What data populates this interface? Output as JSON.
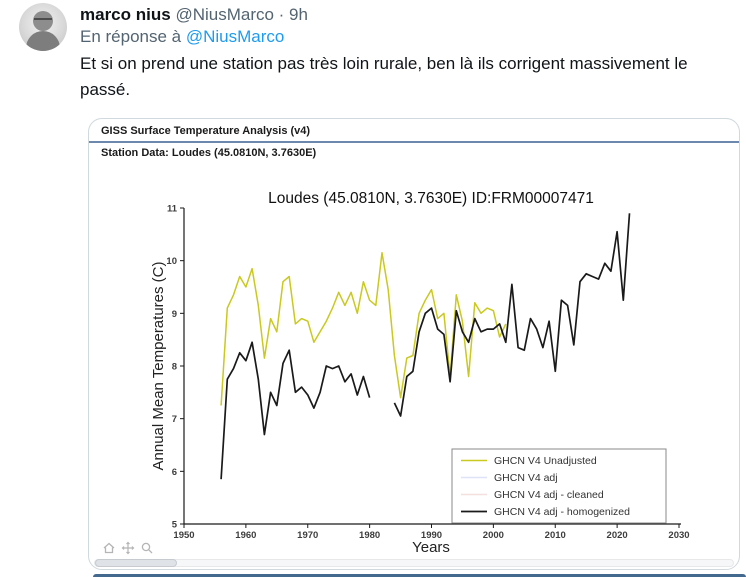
{
  "tweet": {
    "author_name": "marco nius",
    "author_meta": "@NiusMarco · 9h",
    "reply_prefix": "En réponse à ",
    "reply_handle": "@NiusMarco",
    "body": "Et si on prend une station pas très loin rurale, ben là ils corrigent massivement le passé."
  },
  "embed": {
    "header_title": "GISS Surface Temperature Analysis (v4)",
    "station_line": "Station Data: Loudes (45.0810N, 3.7630E)",
    "toolbar_icons": [
      "home-icon",
      "pan-icon",
      "zoom-icon"
    ]
  },
  "colors": {
    "link_blue": "#1d9bf0",
    "text_primary": "#0f1419",
    "text_secondary": "#536471",
    "card_border": "#cfd9de",
    "header_rule_blue": "#6c88ad",
    "bottom_strip_blue": "#44698f"
  },
  "chart_data": {
    "type": "line",
    "title": "Loudes (45.0810N, 3.7630E) ID:FRM00007471",
    "xlabel": "Years",
    "ylabel": "Annual Mean Temperatures (C)",
    "xlim": [
      1950,
      2030
    ],
    "ylim": [
      5,
      11
    ],
    "x_ticks": [
      1950,
      1960,
      1970,
      1980,
      1990,
      2000,
      2010,
      2020,
      2030
    ],
    "y_ticks": [
      5,
      6,
      7,
      8,
      9,
      10,
      11
    ],
    "grid": false,
    "legend_position": "bottom-right",
    "series": [
      {
        "name": "GHCN V4 Unadjusted",
        "color": "#c9c91f",
        "year_start": 1956,
        "values": [
          7.25,
          9.1,
          9.35,
          9.7,
          9.5,
          9.85,
          9.15,
          8.15,
          8.9,
          8.65,
          9.6,
          9.7,
          8.8,
          8.9,
          8.85,
          8.45,
          8.65,
          8.85,
          9.1,
          9.4,
          9.15,
          9.4,
          9.0,
          9.6,
          9.25,
          9.15,
          10.15,
          9.45,
          8.2,
          7.4,
          8.15,
          8.2,
          9.0,
          9.25,
          9.45,
          8.9,
          9.0,
          7.8,
          9.35,
          8.85,
          7.8,
          9.2,
          9.0,
          9.1,
          9.05,
          8.55,
          8.8
        ]
      },
      {
        "name": "GHCN V4 adj",
        "color": "#dfe3f7",
        "year_start": null,
        "values": [],
        "note": "plot line not visibly distinguishable (hidden behind other series)"
      },
      {
        "name": "GHCN V4 adj - cleaned",
        "color": "#f6dfdf",
        "year_start": null,
        "values": [],
        "note": "plot line not visibly distinguishable (hidden behind other series)"
      },
      {
        "name": "GHCN V4 adj - homogenized",
        "color": "#1a1a1a",
        "year_start": 1956,
        "values": [
          5.85,
          7.75,
          7.95,
          8.25,
          8.1,
          8.45,
          7.75,
          6.7,
          7.5,
          7.25,
          8.05,
          8.3,
          7.5,
          7.6,
          7.45,
          7.2,
          7.5,
          8.0,
          7.95,
          8.0,
          7.7,
          7.85,
          7.45,
          7.8,
          7.4,
          null,
          null,
          null,
          7.3,
          7.05,
          7.8,
          7.9,
          8.65,
          9.0,
          9.1,
          8.7,
          8.6,
          7.7,
          9.05,
          8.65,
          8.45,
          8.9,
          8.65,
          8.7,
          8.7,
          8.8,
          8.45,
          9.55,
          8.35,
          8.3,
          8.9,
          8.7,
          8.35,
          8.85,
          7.9,
          9.25,
          9.15,
          8.4,
          9.6,
          9.75,
          9.7,
          9.65,
          9.95,
          9.8,
          10.55,
          9.25,
          10.9
        ]
      }
    ]
  }
}
